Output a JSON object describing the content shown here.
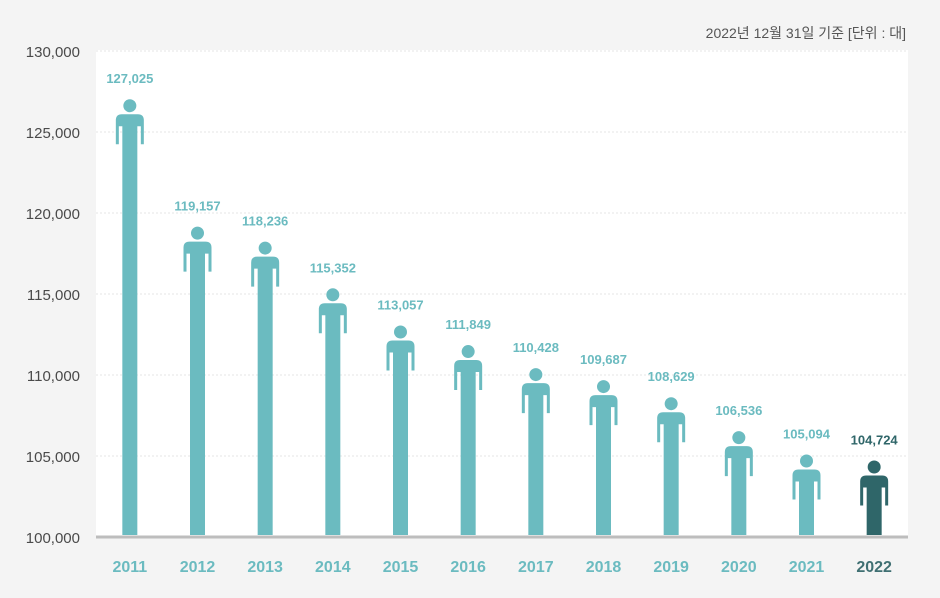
{
  "note": "2022년 12월 31일 기준 [단위 : 대]",
  "colors": {
    "bar": "#6bbbc0",
    "highlight": "#2f6669",
    "year_label": "#6bbbc0",
    "year_label_highlight": "#3f6f72",
    "grid": "#e6e6e6",
    "baseline": "#bdbdbd"
  },
  "chart_data": {
    "type": "bar",
    "title": "",
    "xlabel": "",
    "ylabel": "",
    "ylim": [
      100000,
      130000
    ],
    "yticks": [
      100000,
      105000,
      110000,
      115000,
      120000,
      125000,
      130000
    ],
    "ytick_labels": [
      "100,000",
      "105,000",
      "110,000",
      "115,000",
      "120,000",
      "125,000",
      "130,000"
    ],
    "categories": [
      "2011",
      "2012",
      "2013",
      "2014",
      "2015",
      "2016",
      "2017",
      "2018",
      "2019",
      "2020",
      "2021",
      "2022"
    ],
    "values": [
      127025,
      119157,
      118236,
      115352,
      113057,
      111849,
      110428,
      109687,
      108629,
      106536,
      105094,
      104724
    ],
    "value_labels": [
      "127,025",
      "119,157",
      "118,236",
      "115,352",
      "113,057",
      "111,849",
      "110,428",
      "109,687",
      "108,629",
      "106,536",
      "105,094",
      "104,724"
    ],
    "highlight_category": "2022",
    "mark_icon": "person-figure-icon"
  }
}
